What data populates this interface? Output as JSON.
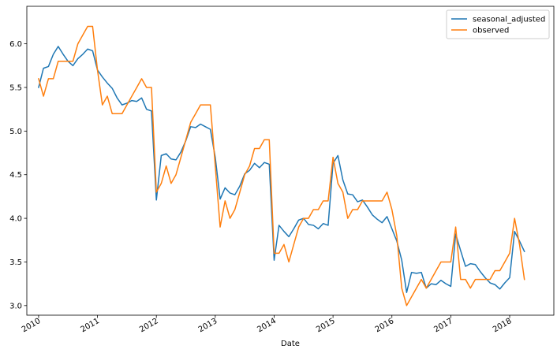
{
  "chart_data": {
    "type": "line",
    "xlabel": "Date",
    "ylabel": "",
    "xlim": [
      2009.8,
      2018.75
    ],
    "ylim": [
      2.89,
      6.43
    ],
    "x_ticks": [
      {
        "value": 2010,
        "label": "2010"
      },
      {
        "value": 2011,
        "label": "2011"
      },
      {
        "value": 2012,
        "label": "2012"
      },
      {
        "value": 2013,
        "label": "2013"
      },
      {
        "value": 2014,
        "label": "2014"
      },
      {
        "value": 2015,
        "label": "2015"
      },
      {
        "value": 2016,
        "label": "2016"
      },
      {
        "value": 2017,
        "label": "2017"
      },
      {
        "value": 2018,
        "label": "2018"
      }
    ],
    "y_ticks": [
      {
        "value": 3.0,
        "label": "3.0"
      },
      {
        "value": 3.5,
        "label": "3.5"
      },
      {
        "value": 4.0,
        "label": "4.0"
      },
      {
        "value": 4.5,
        "label": "4.5"
      },
      {
        "value": 5.0,
        "label": "5.0"
      },
      {
        "value": 5.5,
        "label": "5.5"
      },
      {
        "value": 6.0,
        "label": "6.0"
      }
    ],
    "grid": false,
    "legend_position": "top-right",
    "series": [
      {
        "name": "seasonal_adjusted",
        "color": "#1f77b4",
        "points": [
          [
            2010.0,
            5.5
          ],
          [
            2010.083,
            5.72
          ],
          [
            2010.167,
            5.74
          ],
          [
            2010.25,
            5.88
          ],
          [
            2010.333,
            5.97
          ],
          [
            2010.417,
            5.88
          ],
          [
            2010.5,
            5.8
          ],
          [
            2010.583,
            5.75
          ],
          [
            2010.667,
            5.83
          ],
          [
            2010.75,
            5.88
          ],
          [
            2010.833,
            5.94
          ],
          [
            2010.917,
            5.92
          ],
          [
            2011.0,
            5.7
          ],
          [
            2011.083,
            5.62
          ],
          [
            2011.167,
            5.55
          ],
          [
            2011.25,
            5.49
          ],
          [
            2011.333,
            5.38
          ],
          [
            2011.417,
            5.3
          ],
          [
            2011.5,
            5.32
          ],
          [
            2011.583,
            5.35
          ],
          [
            2011.667,
            5.34
          ],
          [
            2011.75,
            5.38
          ],
          [
            2011.833,
            5.25
          ],
          [
            2011.917,
            5.23
          ],
          [
            2012.0,
            4.21
          ],
          [
            2012.083,
            4.72
          ],
          [
            2012.167,
            4.74
          ],
          [
            2012.25,
            4.68
          ],
          [
            2012.333,
            4.67
          ],
          [
            2012.417,
            4.76
          ],
          [
            2012.5,
            4.89
          ],
          [
            2012.583,
            5.05
          ],
          [
            2012.667,
            5.04
          ],
          [
            2012.75,
            5.08
          ],
          [
            2012.833,
            5.05
          ],
          [
            2012.917,
            5.02
          ],
          [
            2013.0,
            4.7
          ],
          [
            2013.083,
            4.22
          ],
          [
            2013.167,
            4.35
          ],
          [
            2013.25,
            4.29
          ],
          [
            2013.333,
            4.27
          ],
          [
            2013.417,
            4.37
          ],
          [
            2013.5,
            4.51
          ],
          [
            2013.583,
            4.55
          ],
          [
            2013.667,
            4.63
          ],
          [
            2013.75,
            4.58
          ],
          [
            2013.833,
            4.64
          ],
          [
            2013.917,
            4.62
          ],
          [
            2014.0,
            3.52
          ],
          [
            2014.083,
            3.92
          ],
          [
            2014.167,
            3.85
          ],
          [
            2014.25,
            3.79
          ],
          [
            2014.333,
            3.88
          ],
          [
            2014.417,
            3.98
          ],
          [
            2014.5,
            4.0
          ],
          [
            2014.583,
            3.93
          ],
          [
            2014.667,
            3.92
          ],
          [
            2014.75,
            3.88
          ],
          [
            2014.833,
            3.94
          ],
          [
            2014.917,
            3.92
          ],
          [
            2015.0,
            4.63
          ],
          [
            2015.083,
            4.72
          ],
          [
            2015.167,
            4.44
          ],
          [
            2015.25,
            4.28
          ],
          [
            2015.333,
            4.27
          ],
          [
            2015.417,
            4.19
          ],
          [
            2015.5,
            4.21
          ],
          [
            2015.583,
            4.13
          ],
          [
            2015.667,
            4.04
          ],
          [
            2015.75,
            3.99
          ],
          [
            2015.833,
            3.95
          ],
          [
            2015.917,
            4.02
          ],
          [
            2016.0,
            3.88
          ],
          [
            2016.083,
            3.74
          ],
          [
            2016.167,
            3.52
          ],
          [
            2016.25,
            3.15
          ],
          [
            2016.333,
            3.38
          ],
          [
            2016.417,
            3.37
          ],
          [
            2016.5,
            3.38
          ],
          [
            2016.583,
            3.2
          ],
          [
            2016.667,
            3.25
          ],
          [
            2016.75,
            3.24
          ],
          [
            2016.833,
            3.29
          ],
          [
            2016.917,
            3.25
          ],
          [
            2017.0,
            3.22
          ],
          [
            2017.083,
            3.82
          ],
          [
            2017.167,
            3.63
          ],
          [
            2017.25,
            3.45
          ],
          [
            2017.333,
            3.48
          ],
          [
            2017.417,
            3.47
          ],
          [
            2017.5,
            3.39
          ],
          [
            2017.583,
            3.32
          ],
          [
            2017.667,
            3.26
          ],
          [
            2017.75,
            3.24
          ],
          [
            2017.833,
            3.19
          ],
          [
            2017.917,
            3.26
          ],
          [
            2018.0,
            3.32
          ],
          [
            2018.083,
            3.85
          ],
          [
            2018.167,
            3.74
          ],
          [
            2018.25,
            3.62
          ]
        ]
      },
      {
        "name": "observed",
        "color": "#ff7f0e",
        "points": [
          [
            2010.0,
            5.6
          ],
          [
            2010.083,
            5.4
          ],
          [
            2010.167,
            5.6
          ],
          [
            2010.25,
            5.6
          ],
          [
            2010.333,
            5.8
          ],
          [
            2010.417,
            5.8
          ],
          [
            2010.5,
            5.8
          ],
          [
            2010.583,
            5.8
          ],
          [
            2010.667,
            6.0
          ],
          [
            2010.75,
            6.1
          ],
          [
            2010.833,
            6.2
          ],
          [
            2010.917,
            6.2
          ],
          [
            2011.0,
            5.7
          ],
          [
            2011.083,
            5.3
          ],
          [
            2011.167,
            5.4
          ],
          [
            2011.25,
            5.2
          ],
          [
            2011.333,
            5.2
          ],
          [
            2011.417,
            5.2
          ],
          [
            2011.5,
            5.3
          ],
          [
            2011.583,
            5.4
          ],
          [
            2011.667,
            5.5
          ],
          [
            2011.75,
            5.6
          ],
          [
            2011.833,
            5.5
          ],
          [
            2011.917,
            5.5
          ],
          [
            2012.0,
            4.3
          ],
          [
            2012.083,
            4.4
          ],
          [
            2012.167,
            4.6
          ],
          [
            2012.25,
            4.4
          ],
          [
            2012.333,
            4.5
          ],
          [
            2012.417,
            4.7
          ],
          [
            2012.5,
            4.9
          ],
          [
            2012.583,
            5.1
          ],
          [
            2012.667,
            5.2
          ],
          [
            2012.75,
            5.3
          ],
          [
            2012.833,
            5.3
          ],
          [
            2012.917,
            5.3
          ],
          [
            2013.0,
            4.6
          ],
          [
            2013.083,
            3.9
          ],
          [
            2013.167,
            4.2
          ],
          [
            2013.25,
            4.0
          ],
          [
            2013.333,
            4.1
          ],
          [
            2013.417,
            4.3
          ],
          [
            2013.5,
            4.5
          ],
          [
            2013.583,
            4.6
          ],
          [
            2013.667,
            4.8
          ],
          [
            2013.75,
            4.8
          ],
          [
            2013.833,
            4.9
          ],
          [
            2013.917,
            4.9
          ],
          [
            2014.0,
            3.6
          ],
          [
            2014.083,
            3.6
          ],
          [
            2014.167,
            3.7
          ],
          [
            2014.25,
            3.5
          ],
          [
            2014.333,
            3.7
          ],
          [
            2014.417,
            3.9
          ],
          [
            2014.5,
            4.0
          ],
          [
            2014.583,
            4.0
          ],
          [
            2014.667,
            4.1
          ],
          [
            2014.75,
            4.1
          ],
          [
            2014.833,
            4.2
          ],
          [
            2014.917,
            4.2
          ],
          [
            2015.0,
            4.7
          ],
          [
            2015.083,
            4.4
          ],
          [
            2015.167,
            4.3
          ],
          [
            2015.25,
            4.0
          ],
          [
            2015.333,
            4.1
          ],
          [
            2015.417,
            4.1
          ],
          [
            2015.5,
            4.2
          ],
          [
            2015.583,
            4.2
          ],
          [
            2015.667,
            4.2
          ],
          [
            2015.75,
            4.2
          ],
          [
            2015.833,
            4.2
          ],
          [
            2015.917,
            4.3
          ],
          [
            2016.0,
            4.1
          ],
          [
            2016.083,
            3.8
          ],
          [
            2016.167,
            3.2
          ],
          [
            2016.25,
            3.0
          ],
          [
            2016.333,
            3.1
          ],
          [
            2016.417,
            3.2
          ],
          [
            2016.5,
            3.3
          ],
          [
            2016.583,
            3.2
          ],
          [
            2016.667,
            3.3
          ],
          [
            2016.75,
            3.4
          ],
          [
            2016.833,
            3.5
          ],
          [
            2016.917,
            3.5
          ],
          [
            2017.0,
            3.5
          ],
          [
            2017.083,
            3.9
          ],
          [
            2017.167,
            3.3
          ],
          [
            2017.25,
            3.3
          ],
          [
            2017.333,
            3.2
          ],
          [
            2017.417,
            3.3
          ],
          [
            2017.5,
            3.3
          ],
          [
            2017.583,
            3.3
          ],
          [
            2017.667,
            3.3
          ],
          [
            2017.75,
            3.4
          ],
          [
            2017.833,
            3.4
          ],
          [
            2017.917,
            3.5
          ],
          [
            2018.0,
            3.6
          ],
          [
            2018.083,
            4.0
          ],
          [
            2018.167,
            3.7
          ],
          [
            2018.25,
            3.3
          ]
        ]
      }
    ]
  }
}
